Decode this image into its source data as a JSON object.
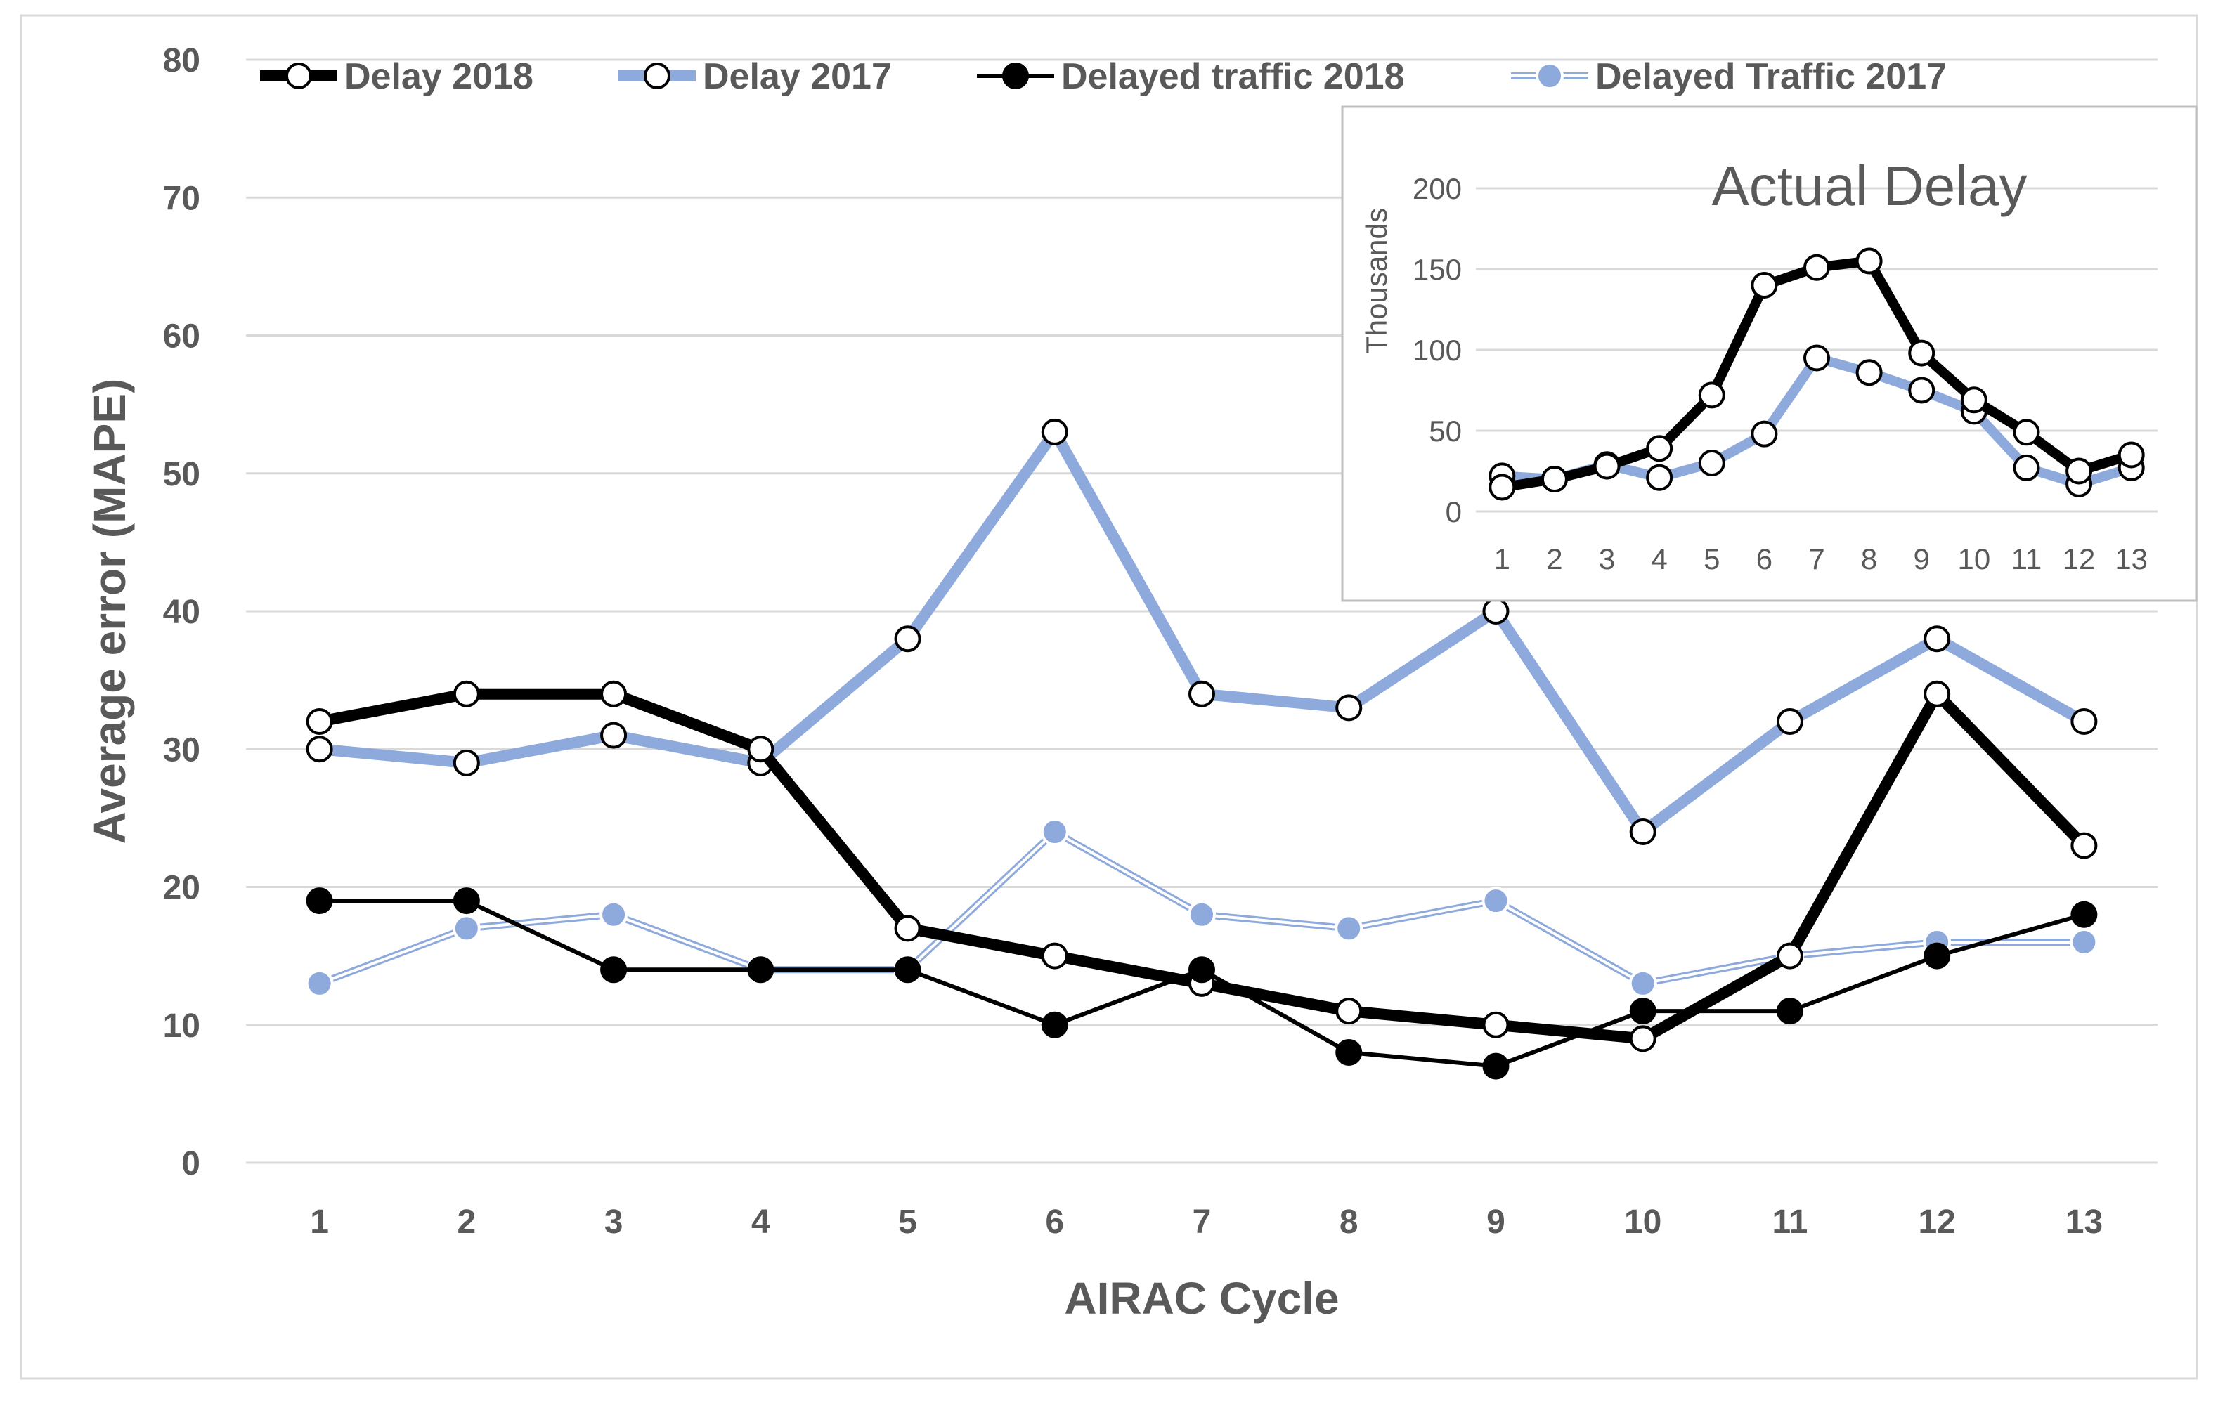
{
  "chart_data": [
    {
      "type": "line",
      "title": "",
      "xlabel": "AIRAC Cycle",
      "ylabel": "Average error (MAPE)",
      "categories": [
        "1",
        "2",
        "3",
        "4",
        "5",
        "6",
        "7",
        "8",
        "9",
        "10",
        "11",
        "12",
        "13"
      ],
      "ylim": [
        0,
        80
      ],
      "yticks": [
        "0",
        "10",
        "20",
        "30",
        "40",
        "50",
        "60",
        "70",
        "80"
      ],
      "grid": true,
      "legend_position": "top",
      "series": [
        {
          "name": "Delay 2018",
          "values": [
            32,
            34,
            34,
            30,
            17,
            15,
            13,
            11,
            10,
            9,
            15,
            34,
            23
          ],
          "color": "#000000",
          "marker": "open"
        },
        {
          "name": "Delay 2017",
          "values": [
            30,
            29,
            31,
            29,
            38,
            53,
            34,
            33,
            40,
            24,
            32,
            38,
            32
          ],
          "color": "#8EA9DB",
          "marker": "open"
        },
        {
          "name": "Delayed traffic 2018",
          "values": [
            19,
            19,
            14,
            14,
            14,
            10,
            14,
            8,
            7,
            11,
            11,
            15,
            18
          ],
          "color": "#000000",
          "marker": "filled"
        },
        {
          "name": "Delayed Traffic 2017",
          "values": [
            13,
            17,
            18,
            14,
            14,
            24,
            18,
            17,
            19,
            13,
            15,
            16,
            16
          ],
          "color": "#8EA9DB",
          "marker": "filled-double"
        }
      ]
    },
    {
      "type": "line",
      "title": "Actual Delay",
      "xlabel": "",
      "ylabel": "Thousands",
      "categories": [
        "1",
        "2",
        "3",
        "4",
        "5",
        "6",
        "7",
        "8",
        "9",
        "10",
        "11",
        "12",
        "13"
      ],
      "ylim": [
        0,
        200
      ],
      "yticks": [
        "0",
        "50",
        "100",
        "150",
        "200"
      ],
      "grid": true,
      "series": [
        {
          "name": "Delay 2018",
          "values": [
            15,
            20,
            28,
            39,
            72,
            140,
            151,
            155,
            98,
            69,
            49,
            25,
            35
          ],
          "color": "#000000"
        },
        {
          "name": "Delay 2017",
          "values": [
            22,
            20,
            29,
            21,
            30,
            48,
            95,
            86,
            75,
            62,
            27,
            17,
            27
          ],
          "color": "#8EA9DB"
        }
      ]
    }
  ]
}
